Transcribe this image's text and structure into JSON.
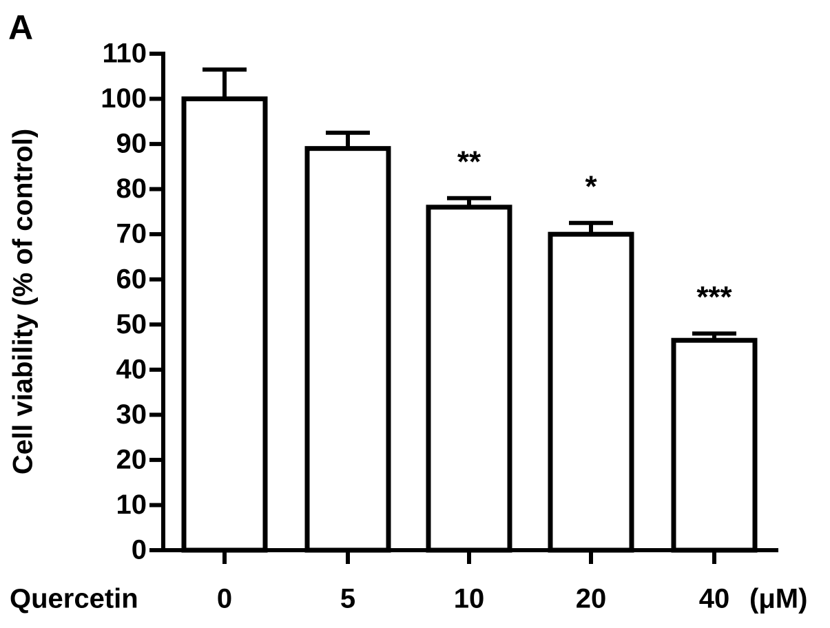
{
  "chart_data": {
    "type": "bar",
    "panel_label": "A",
    "ylabel": "Cell viability (% of control)",
    "xlabel": "Quercetin",
    "x_unit": "(μM)",
    "categories": [
      "0",
      "5",
      "10",
      "20",
      "40"
    ],
    "values": [
      100,
      89,
      76,
      70,
      46.5
    ],
    "errors": [
      6.5,
      3.5,
      2,
      2.5,
      1.5
    ],
    "annotations": [
      null,
      null,
      "**",
      "*",
      "***"
    ],
    "color": "#ffffff",
    "ylim": [
      0,
      110
    ],
    "yticks": [
      0,
      10,
      20,
      30,
      40,
      50,
      60,
      70,
      80,
      90,
      100,
      110
    ]
  }
}
